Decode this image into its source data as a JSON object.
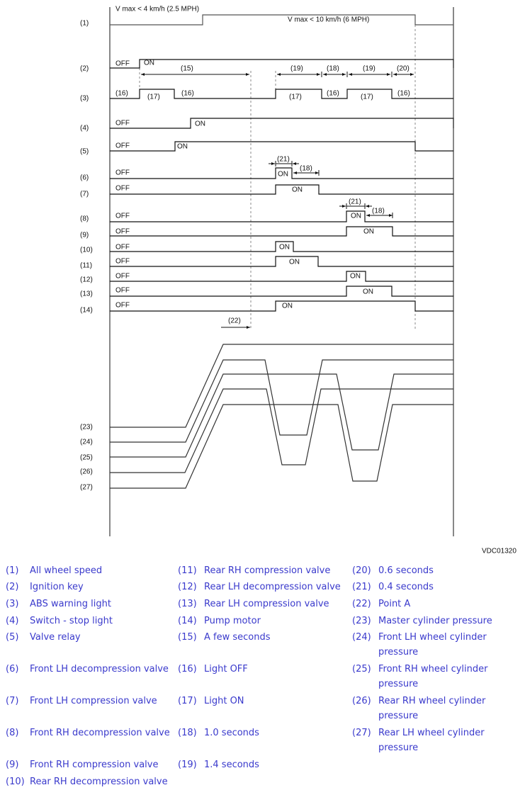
{
  "diagram": {
    "figure_code": "VDC01320",
    "speed_low": "V max < 4 km/h (2.5 MPH)",
    "speed_high": "V max < 10 km/h (6 MPH)",
    "state_off": "OFF",
    "state_on": "ON",
    "row_labels": [
      "(1)",
      "(2)",
      "(3)",
      "(4)",
      "(5)",
      "(6)",
      "(7)",
      "(8)",
      "(9)",
      "(10)",
      "(11)",
      "(12)",
      "(13)",
      "(14)",
      "(23)",
      "(24)",
      "(25)",
      "(26)",
      "(27)"
    ],
    "annotations": {
      "a15": "(15)",
      "a16": "(16)",
      "a17": "(17)",
      "a18": "(18)",
      "a19": "(19)",
      "a20": "(20)",
      "a21": "(21)",
      "a22": "(22)"
    }
  },
  "legend": [
    {
      "num": "(1)",
      "text": "All wheel speed"
    },
    {
      "num": "(2)",
      "text": "Ignition key"
    },
    {
      "num": "(3)",
      "text": "ABS warning light"
    },
    {
      "num": "(4)",
      "text": "Switch - stop light"
    },
    {
      "num": "(5)",
      "text": "Valve relay"
    },
    {
      "num": "(6)",
      "text": "Front LH decompression valve"
    },
    {
      "num": "(7)",
      "text": "Front LH compression valve"
    },
    {
      "num": "(8)",
      "text": "Front RH decompression valve"
    },
    {
      "num": "(9)",
      "text": "Front RH compression valve"
    },
    {
      "num": "(10)",
      "text": "Rear RH decompression valve"
    },
    {
      "num": "(11)",
      "text": "Rear RH compression valve"
    },
    {
      "num": "(12)",
      "text": "Rear LH decompression valve"
    },
    {
      "num": "(13)",
      "text": "Rear LH compression valve"
    },
    {
      "num": "(14)",
      "text": "Pump motor"
    },
    {
      "num": "(15)",
      "text": "A few seconds"
    },
    {
      "num": "(16)",
      "text": "Light OFF"
    },
    {
      "num": "(17)",
      "text": "Light ON"
    },
    {
      "num": "(18)",
      "text": "1.0 seconds"
    },
    {
      "num": "(19)",
      "text": "1.4 seconds"
    },
    {
      "num": "(20)",
      "text": "0.6 seconds"
    },
    {
      "num": "(21)",
      "text": "0.4 seconds"
    },
    {
      "num": "(22)",
      "text": "Point A"
    },
    {
      "num": "(23)",
      "text": "Master cylinder pressure"
    },
    {
      "num": "(24)",
      "text": "Front LH wheel cylinder pressure"
    },
    {
      "num": "(25)",
      "text": "Front RH wheel cylinder pressure"
    },
    {
      "num": "(26)",
      "text": "Rear RH wheel cylinder pressure"
    },
    {
      "num": "(27)",
      "text": "Rear LH wheel cylinder pressure"
    }
  ],
  "colors": {
    "legend_text": "#3a3acc",
    "lines": "#111111",
    "dashed": "#888888"
  }
}
